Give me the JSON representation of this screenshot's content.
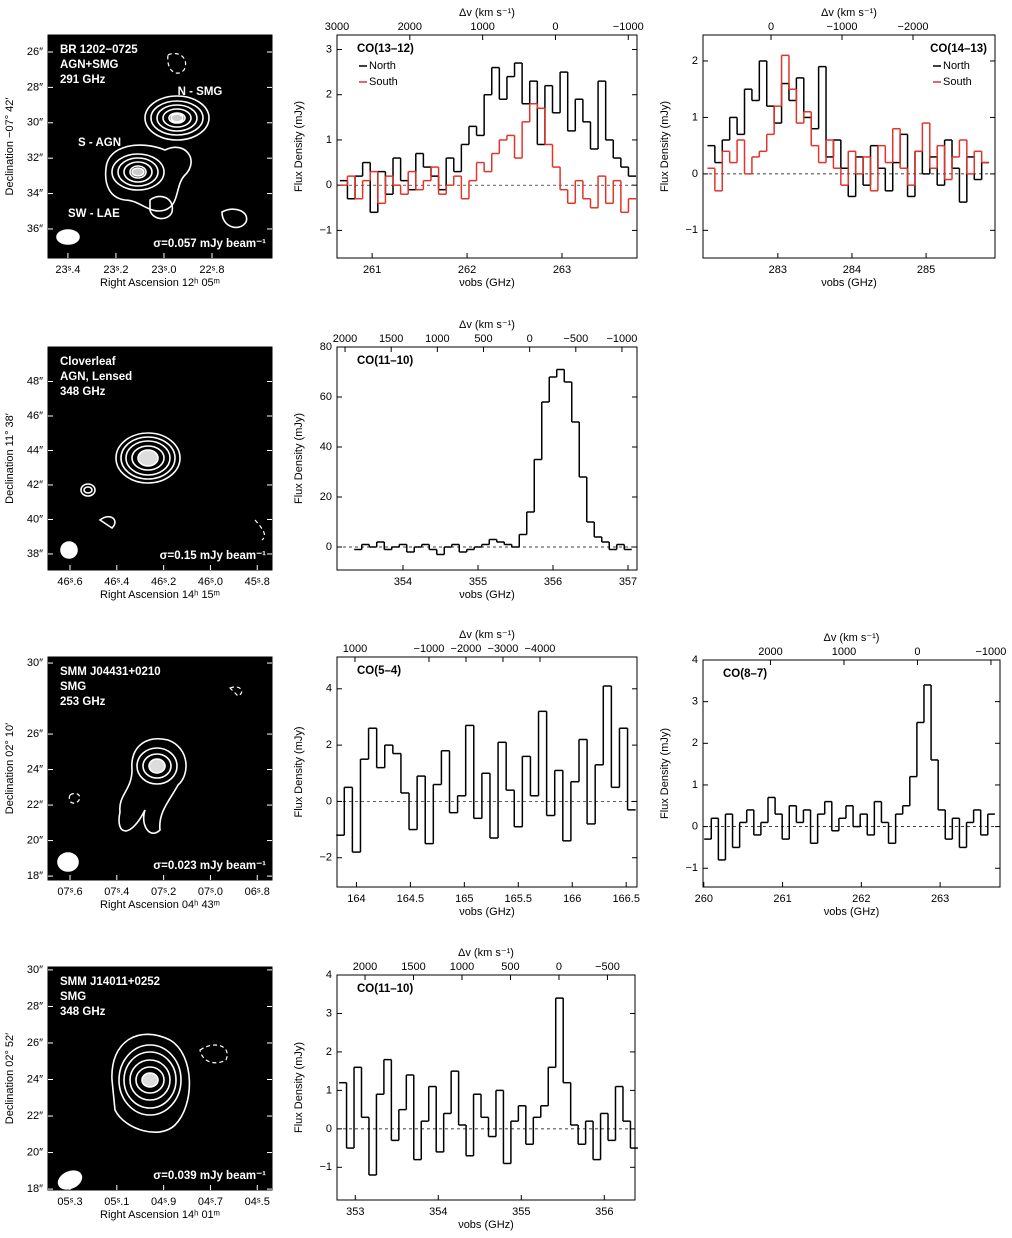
{
  "chart_data": [
    {
      "type": "image",
      "title_lines": [
        "BR 1202−0725",
        "AGN+SMG",
        "291 GHz"
      ],
      "labels": [
        "N - SMG",
        "S - AGN",
        "SW - LAE"
      ],
      "sigma": "σ=0.057 mJy beam⁻¹",
      "xlabel": "Right Ascension 12ʰ 05ᵐ",
      "ylabel": "Declination −07° 42′",
      "xlim": [
        23.483,
        22.55
      ],
      "xticks": [
        {
          "value": 23.4,
          "label": "23ˢ.4"
        },
        {
          "value": 23.2,
          "label": "23ˢ.2"
        },
        {
          "value": 23.0,
          "label": "23ˢ.0"
        },
        {
          "value": 22.8,
          "label": "22ˢ.8"
        }
      ],
      "ylim": [
        37.64,
        25.04
      ],
      "yticks": [
        {
          "value": 26,
          "label": "26″"
        },
        {
          "value": 28,
          "label": "28″"
        },
        {
          "value": 30,
          "label": "30″"
        },
        {
          "value": 32,
          "label": "32″"
        },
        {
          "value": 34,
          "label": "34″"
        },
        {
          "value": 36,
          "label": "36″"
        }
      ]
    },
    {
      "type": "step",
      "title": "CO(13–12)",
      "xlabel": "νobs (GHz)",
      "ylabel": "Flux Density (mJy)",
      "x2label": "Δv (km s⁻¹)",
      "legend": "upper left",
      "xlim": [
        260.63,
        263.79
      ],
      "xticks": [
        261,
        262,
        263
      ],
      "x2lim": [
        3000,
        -1120
      ],
      "x2ticks": [
        3000,
        2000,
        1000,
        0,
        {
          "value": -1000,
          "label": "−1000"
        }
      ],
      "ylim": [
        -1.61,
        3.32
      ],
      "yticks": [
        {
          "value": -1,
          "label": "−1"
        },
        0,
        1,
        2,
        3
      ],
      "x": [
        260.7,
        260.78,
        260.86,
        260.94,
        261.02,
        261.1,
        261.18,
        261.26,
        261.34,
        261.42,
        261.5,
        261.58,
        261.66,
        261.74,
        261.82,
        261.9,
        261.98,
        262.06,
        262.14,
        262.22,
        262.3,
        262.38,
        262.46,
        262.54,
        262.62,
        262.7,
        262.78,
        262.86,
        262.94,
        263.02,
        263.1,
        263.18,
        263.26,
        263.34,
        263.42,
        263.5,
        263.58,
        263.66,
        263.74
      ],
      "series": [
        {
          "name": "North",
          "color": "#000000",
          "values": [
            0.1,
            -0.3,
            0.2,
            0.5,
            -0.6,
            0.3,
            -0.2,
            0.6,
            0.1,
            -0.1,
            0.7,
            0.4,
            0.2,
            -0.1,
            0.6,
            0.3,
            0.9,
            1.3,
            1.1,
            2.0,
            2.6,
            1.9,
            2.4,
            2.7,
            1.8,
            2.3,
            0.9,
            2.2,
            1.6,
            2.5,
            1.2,
            1.9,
            1.4,
            0.8,
            2.3,
            1.0,
            0.6,
            0.4,
            0.2
          ]
        },
        {
          "name": "South",
          "color": "#e0352b",
          "values": [
            0.0,
            0.2,
            -0.3,
            0.1,
            0.3,
            -0.4,
            0.2,
            0.0,
            -0.2,
            0.3,
            -0.1,
            0.1,
            0.4,
            -0.2,
            0.0,
            0.2,
            -0.3,
            0.1,
            0.5,
            0.3,
            0.7,
            1.0,
            1.1,
            0.6,
            1.4,
            1.8,
            1.7,
            0.9,
            0.4,
            -0.1,
            -0.4,
            0.1,
            -0.3,
            -0.5,
            0.2,
            -0.4,
            0.1,
            -0.6,
            -0.3
          ]
        }
      ]
    },
    {
      "type": "step",
      "title": "CO(14–13)",
      "xlabel": "νobs (GHz)",
      "ylabel": "Flux Density (mJy)",
      "x2label": "Δv (km s⁻¹)",
      "legend": "upper right",
      "xlim": [
        281.99,
        285.93
      ],
      "xticks": [
        283,
        284,
        285
      ],
      "x2lim": [
        958,
        -3155
      ],
      "x2ticks": [
        0,
        {
          "value": -1000,
          "label": "−1000"
        },
        {
          "value": -2000,
          "label": "−2000"
        }
      ],
      "ylim": [
        -1.49,
        2.46
      ],
      "yticks": [
        {
          "value": -1,
          "label": "−1"
        },
        0,
        1,
        2
      ],
      "x": [
        282.1,
        282.2,
        282.3,
        282.4,
        282.5,
        282.6,
        282.7,
        282.8,
        282.9,
        283.0,
        283.1,
        283.2,
        283.3,
        283.4,
        283.5,
        283.6,
        283.7,
        283.8,
        283.9,
        284.0,
        284.1,
        284.2,
        284.3,
        284.4,
        284.5,
        284.6,
        284.7,
        284.8,
        284.9,
        285.0,
        285.1,
        285.2,
        285.3,
        285.4,
        285.5,
        285.6,
        285.7,
        285.8
      ],
      "series": [
        {
          "name": "North",
          "color": "#000000",
          "values": [
            0.5,
            0.2,
            0.6,
            1.0,
            0.7,
            1.5,
            1.3,
            2.0,
            1.2,
            0.9,
            1.6,
            1.3,
            1.7,
            1.0,
            0.8,
            1.9,
            0.3,
            0.6,
            0.1,
            -0.4,
            0.3,
            -0.2,
            0.5,
            0.1,
            -0.3,
            0.2,
            0.7,
            -0.4,
            0.4,
            0.0,
            0.3,
            -0.2,
            0.6,
            0.1,
            -0.5,
            0.3,
            -0.1,
            0.2
          ]
        },
        {
          "name": "South",
          "color": "#e0352b",
          "values": [
            0.1,
            -0.3,
            0.4,
            0.2,
            0.6,
            0.0,
            0.3,
            0.4,
            0.7,
            1.2,
            2.1,
            1.5,
            0.9,
            1.1,
            0.5,
            0.2,
            0.6,
            0.1,
            -0.2,
            0.4,
            0.0,
            0.3,
            -0.3,
            0.5,
            0.2,
            0.8,
            0.1,
            -0.2,
            0.4,
            0.9,
            0.1,
            0.5,
            -0.1,
            0.3,
            0.6,
            0.0,
            0.4,
            0.2
          ]
        }
      ]
    },
    {
      "type": "image",
      "title_lines": [
        "Cloverleaf",
        "AGN, Lensed",
        "348 GHz"
      ],
      "sigma": "σ=0.15 mJy beam⁻¹",
      "xlabel": "Right Ascension 14ʰ 15ᵐ",
      "ylabel": "Declination 11° 38′",
      "xlim": [
        46.694,
        45.737
      ],
      "xticks": [
        {
          "value": 46.6,
          "label": "46ˢ.6"
        },
        {
          "value": 46.4,
          "label": "46ˢ.4"
        },
        {
          "value": 46.2,
          "label": "46ˢ.2"
        },
        {
          "value": 46.0,
          "label": "46ˢ.0"
        },
        {
          "value": 45.8,
          "label": "45ˢ.8"
        }
      ],
      "ylim": [
        37.07,
        50.0
      ],
      "yticks": [
        {
          "value": 38,
          "label": "38″"
        },
        {
          "value": 40,
          "label": "40″"
        },
        {
          "value": 42,
          "label": "42″"
        },
        {
          "value": 44,
          "label": "44″"
        },
        {
          "value": 46,
          "label": "46″"
        },
        {
          "value": 48,
          "label": "48″"
        }
      ]
    },
    {
      "type": "step",
      "title": "CO(11–10)",
      "xlabel": "νobs (GHz)",
      "ylabel": "Flux Density (mJy)",
      "x2label": "Δv (km s⁻¹)",
      "xlim": [
        353.12,
        357.12
      ],
      "xticks": [
        354,
        355,
        356,
        357
      ],
      "x2lim": [
        2087,
        -1163
      ],
      "x2ticks": [
        2000,
        1500,
        1000,
        500,
        0,
        {
          "value": -500,
          "label": "−500"
        },
        {
          "value": -1000,
          "label": "−1000"
        }
      ],
      "ylim": [
        -9.2,
        80
      ],
      "yticks": [
        0,
        20,
        40,
        60,
        80
      ],
      "x": [
        353.4,
        353.5,
        353.6,
        353.7,
        353.8,
        353.9,
        354.0,
        354.1,
        354.2,
        354.3,
        354.4,
        354.5,
        354.6,
        354.7,
        354.8,
        354.9,
        355.0,
        355.1,
        355.2,
        355.3,
        355.4,
        355.5,
        355.6,
        355.7,
        355.8,
        355.9,
        356.0,
        356.1,
        356.2,
        356.3,
        356.4,
        356.5,
        356.6,
        356.7,
        356.8,
        356.9,
        357.0
      ],
      "series": [
        {
          "color": "#000000",
          "values": [
            -1,
            1,
            0,
            2,
            -1,
            0,
            1,
            -2,
            0,
            1,
            -1,
            -3,
            0,
            1,
            -2,
            -1,
            0,
            1,
            3,
            2,
            1,
            0,
            5,
            14,
            35,
            58,
            68,
            71,
            66,
            50,
            28,
            10,
            4,
            2,
            -1,
            1,
            -1
          ]
        }
      ]
    },
    {
      "type": "image",
      "title_lines": [
        "SMM J04431+0210",
        "SMG",
        "253 GHz"
      ],
      "sigma": "σ=0.023 mJy beam⁻¹",
      "xlabel": "Right Ascension 04ʰ 43ᵐ",
      "ylabel": "Declination 02° 10′",
      "xlim": [
        7.694,
        6.737
      ],
      "xticks": [
        {
          "value": 7.6,
          "label": "07ˢ.6"
        },
        {
          "value": 7.4,
          "label": "07ˢ.4"
        },
        {
          "value": 7.2,
          "label": "07ˢ.2"
        },
        {
          "value": 7.0,
          "label": "07ˢ.0"
        },
        {
          "value": 6.8,
          "label": "06ˢ.8"
        }
      ],
      "ylim": [
        17.78,
        30.34
      ],
      "yticks": [
        {
          "value": 18,
          "label": "18″"
        },
        {
          "value": 20,
          "label": "20″"
        },
        {
          "value": 22,
          "label": "22″"
        },
        {
          "value": 24,
          "label": "24″"
        },
        {
          "value": 26,
          "label": "26″"
        },
        {
          "value": 30,
          "label": "30″"
        }
      ]
    },
    {
      "type": "step",
      "title": "CO(5–4)",
      "xlabel": "νobs (GHz)",
      "ylabel": "Flux Density (mJy)",
      "x2label": "Δv (km s⁻¹)",
      "xlim": [
        163.82,
        166.6
      ],
      "xticks": [
        164.0,
        164.5,
        165.0,
        165.5,
        166.0,
        166.5
      ],
      "x2lim": [
        1486,
        -6622
      ],
      "x2ticks": [
        1000,
        {
          "value": -1000,
          "label": "−1000"
        },
        {
          "value": -2000,
          "label": "−2000"
        },
        {
          "value": -3000,
          "label": "−3000"
        },
        {
          "value": -4000,
          "label": "−4000"
        }
      ],
      "ylim": [
        -3.04,
        5.13
      ],
      "yticks": [
        {
          "value": -2,
          "label": "−2"
        },
        0,
        2,
        4
      ],
      "x": [
        163.85,
        163.925,
        164.0,
        164.075,
        164.15,
        164.225,
        164.3,
        164.375,
        164.45,
        164.525,
        164.6,
        164.675,
        164.75,
        164.825,
        164.9,
        164.975,
        165.05,
        165.125,
        165.2,
        165.275,
        165.35,
        165.425,
        165.5,
        165.575,
        165.65,
        165.725,
        165.8,
        165.875,
        165.95,
        166.025,
        166.1,
        166.175,
        166.25,
        166.325,
        166.4,
        166.475,
        166.55
      ],
      "series": [
        {
          "color": "#000000",
          "values": [
            -1.2,
            0.5,
            -1.8,
            1.5,
            2.6,
            1.2,
            2.0,
            1.7,
            0.3,
            -1.0,
            0.9,
            -1.5,
            0.6,
            1.8,
            -0.4,
            0.2,
            2.7,
            -0.6,
            1.0,
            -1.3,
            2.1,
            0.4,
            -0.9,
            1.6,
            0.2,
            3.2,
            -0.5,
            1.1,
            -1.4,
            0.7,
            2.2,
            -0.8,
            1.3,
            4.1,
            0.5,
            2.6,
            -0.3
          ]
        }
      ]
    },
    {
      "type": "step",
      "title": "CO(8–7)",
      "xlabel": "νobs (GHz)",
      "ylabel": "Flux Density (mJy)",
      "x2label": "Δv (km s⁻¹)",
      "xlim": [
        259.99,
        263.76
      ],
      "xticks": [
        260,
        261,
        262,
        263
      ],
      "x2lim": [
        2918,
        -1123
      ],
      "x2ticks": [
        2000,
        1000,
        0,
        {
          "value": -1000,
          "label": "−1000"
        }
      ],
      "ylim": [
        -1.45,
        4.0
      ],
      "yticks": [
        {
          "value": -1,
          "label": "−1"
        },
        0,
        1,
        2,
        3,
        4
      ],
      "x": [
        260.05,
        260.14,
        260.23,
        260.32,
        260.41,
        260.5,
        260.59,
        260.68,
        260.77,
        260.86,
        260.95,
        261.04,
        261.13,
        261.22,
        261.31,
        261.4,
        261.49,
        261.58,
        261.67,
        261.76,
        261.85,
        261.94,
        262.03,
        262.12,
        262.21,
        262.3,
        262.39,
        262.48,
        262.57,
        262.66,
        262.75,
        262.84,
        262.93,
        263.02,
        263.11,
        263.2,
        263.29,
        263.38,
        263.47,
        263.56,
        263.65
      ],
      "series": [
        {
          "color": "#000000",
          "values": [
            -0.3,
            0.2,
            -0.8,
            0.3,
            -0.5,
            0.1,
            0.4,
            -0.2,
            0.1,
            0.7,
            0.3,
            -0.3,
            0.5,
            0.1,
            0.4,
            -0.4,
            0.3,
            0.6,
            -0.1,
            0.2,
            0.5,
            0.0,
            0.3,
            -0.2,
            0.6,
            0.1,
            -0.4,
            0.3,
            0.5,
            1.2,
            2.5,
            3.4,
            1.6,
            0.4,
            -0.3,
            0.2,
            -0.5,
            0.1,
            0.4,
            -0.2,
            0.3
          ]
        }
      ]
    },
    {
      "type": "image",
      "title_lines": [
        "SMM J14011+0252",
        "SMG",
        "348 GHz"
      ],
      "sigma": "σ=0.039 mJy beam⁻¹",
      "xlabel": "Right Ascension 14ʰ 01ᵐ",
      "ylabel": "Declination 02° 52′",
      "xlim": [
        5.394,
        4.437
      ],
      "xticks": [
        {
          "value": 5.3,
          "label": "05ˢ.3"
        },
        {
          "value": 5.1,
          "label": "05ˢ.1"
        },
        {
          "value": 4.9,
          "label": "04ˢ.9"
        },
        {
          "value": 4.7,
          "label": "04ˢ.7"
        },
        {
          "value": 4.5,
          "label": "04ˢ.5"
        }
      ],
      "ylim": [
        17.95,
        30.16
      ],
      "yticks": [
        {
          "value": 18,
          "label": "18″"
        },
        {
          "value": 20,
          "label": "20″"
        },
        {
          "value": 22,
          "label": "22″"
        },
        {
          "value": 24,
          "label": "24″"
        },
        {
          "value": 26,
          "label": "26″"
        },
        {
          "value": 28,
          "label": "28″"
        },
        {
          "value": 30,
          "label": "30″"
        }
      ]
    },
    {
      "type": "step",
      "title": "CO(11–10)",
      "xlabel": "νobs (GHz)",
      "ylabel": "Flux Density (mJy)",
      "x2label": "Δv (km s⁻¹)",
      "xlim": [
        352.78,
        356.37
      ],
      "xticks": [
        353,
        354,
        355,
        356
      ],
      "x2lim": [
        2289,
        -784
      ],
      "x2ticks": [
        2000,
        1500,
        1000,
        500,
        0,
        {
          "value": -500,
          "label": "−500"
        }
      ],
      "ylim": [
        -1.85,
        4
      ],
      "yticks": [
        {
          "value": -1,
          "label": "−1"
        },
        0,
        1,
        2,
        3,
        4
      ],
      "x": [
        352.85,
        352.94,
        353.03,
        353.12,
        353.21,
        353.3,
        353.39,
        353.48,
        353.57,
        353.66,
        353.75,
        353.84,
        353.93,
        354.02,
        354.11,
        354.2,
        354.29,
        354.38,
        354.47,
        354.56,
        354.65,
        354.74,
        354.83,
        354.92,
        355.01,
        355.1,
        355.19,
        355.28,
        355.37,
        355.46,
        355.55,
        355.64,
        355.73,
        355.82,
        355.91,
        356.0,
        356.09,
        356.18,
        356.27,
        356.36
      ],
      "series": [
        {
          "color": "#000000",
          "values": [
            1.2,
            -0.5,
            1.6,
            0.3,
            -1.2,
            0.9,
            1.8,
            -0.3,
            0.5,
            1.4,
            -0.8,
            0.2,
            1.1,
            -0.6,
            0.4,
            1.5,
            0.1,
            -0.7,
            0.9,
            0.3,
            -0.2,
            1.0,
            -0.9,
            0.2,
            0.6,
            -0.4,
            0.3,
            0.6,
            1.6,
            3.4,
            1.2,
            0.1,
            -0.4,
            0.2,
            -0.8,
            0.4,
            -0.3,
            1.1,
            0.2,
            -0.5
          ]
        }
      ]
    }
  ]
}
